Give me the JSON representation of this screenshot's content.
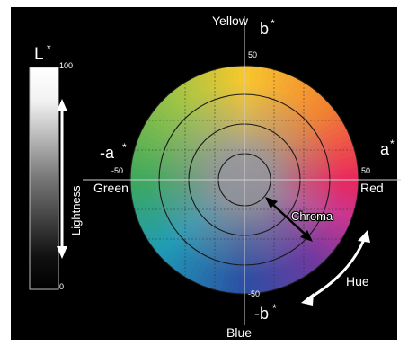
{
  "lightness_bar": {
    "symbol": "L",
    "symbol_superscript": "*",
    "top_value": "100",
    "bottom_value": "0",
    "label": "Lightness"
  },
  "axes": {
    "yellow": "Yellow",
    "b_plus": "b",
    "b_plus_superscript": "*",
    "blue": "Blue",
    "b_minus": "-b",
    "b_minus_superscript": "*",
    "green": "Green",
    "a_minus": "-a",
    "a_minus_superscript": "*",
    "red": "Red",
    "a_plus": "a",
    "a_plus_superscript": "*"
  },
  "ticks": {
    "top": "50",
    "bottom": "-50",
    "left": "-50",
    "right": "50"
  },
  "annotations": {
    "chroma": "Chroma",
    "hue": "Hue"
  },
  "colors": {
    "background": "#000000",
    "yellow": "#f7c41f",
    "orange": "#f07b2a",
    "red": "#e8235a",
    "magenta": "#c8348f",
    "violet": "#6d3aa0",
    "blue": "#2c4fa3",
    "cyan": "#1f9bb5",
    "green": "#3aa65a",
    "lime": "#9bc13c",
    "neutral_center": "#8a8a90"
  }
}
